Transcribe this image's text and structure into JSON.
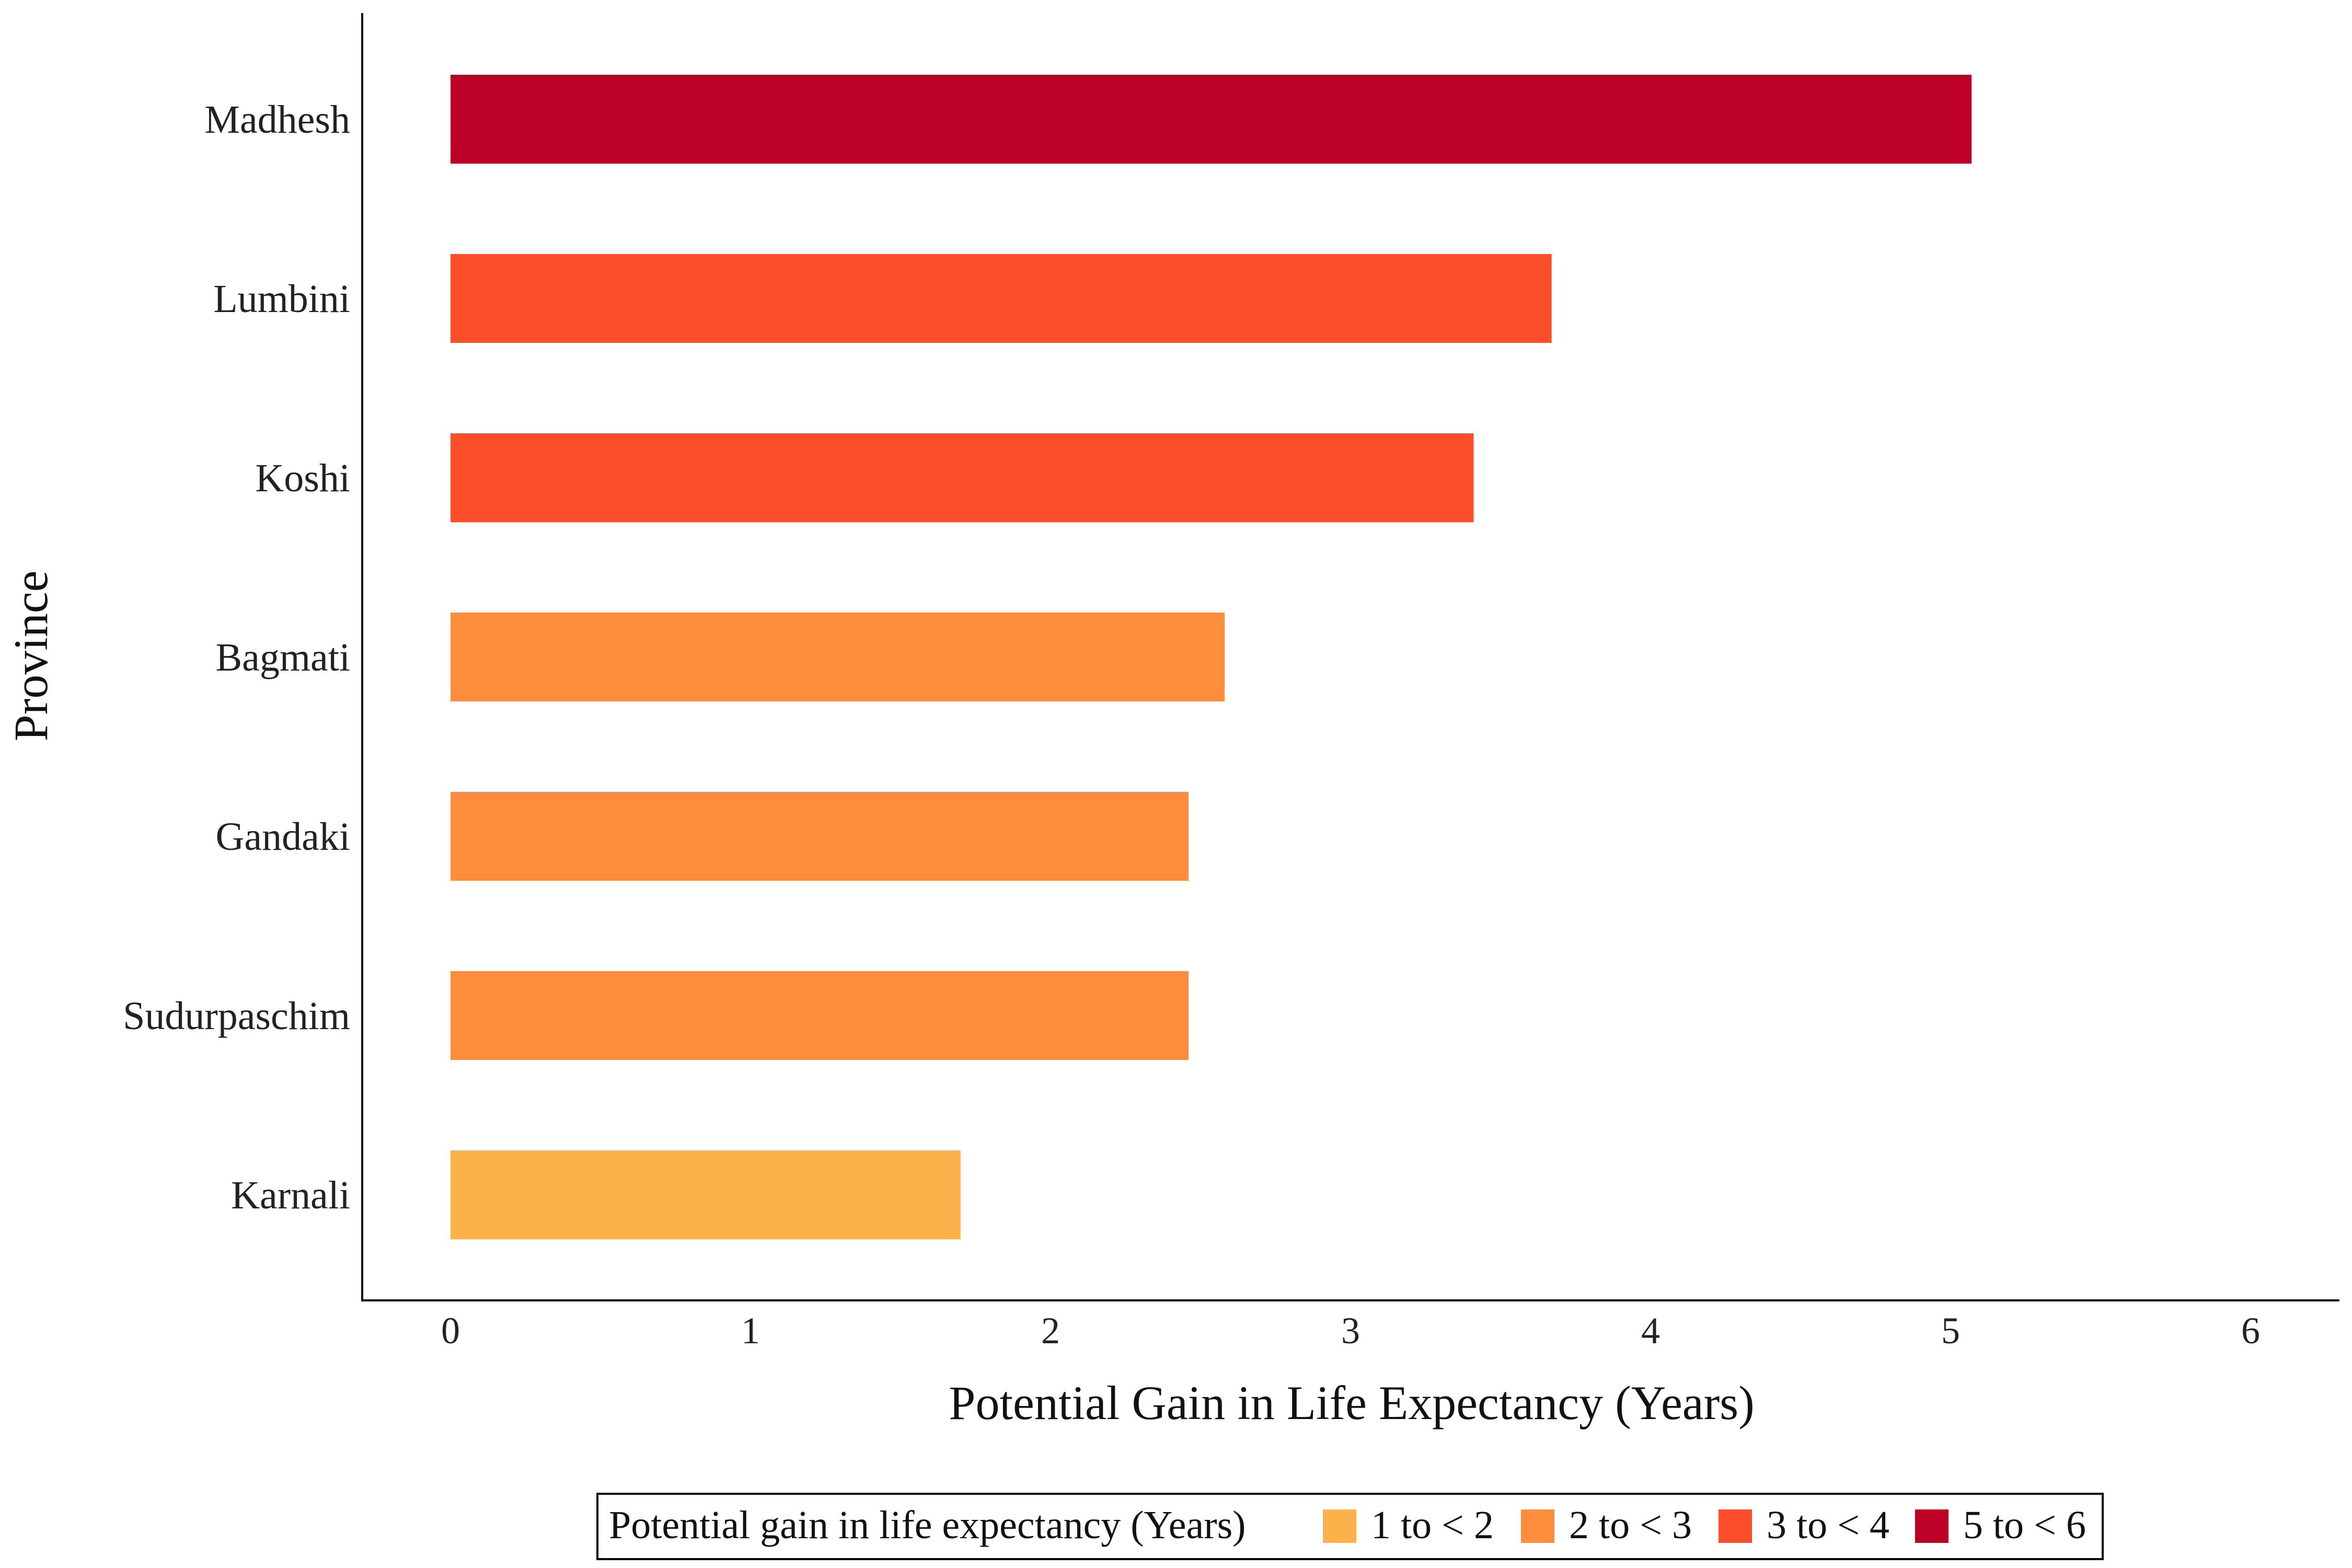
{
  "chart_data": {
    "type": "bar",
    "orientation": "horizontal",
    "xlabel": "Potential Gain in Life Expectancy (Years)",
    "ylabel": "Province",
    "xlim": [
      0,
      6
    ],
    "x_ticks": [
      "0",
      "1",
      "2",
      "3",
      "4",
      "5",
      "6"
    ],
    "grid": false,
    "categories": [
      "Madhesh",
      "Lumbini",
      "Koshi",
      "Bagmati",
      "Gandaki",
      "Sudurpaschim",
      "Karnali"
    ],
    "values": [
      5.07,
      3.67,
      3.41,
      2.58,
      2.46,
      2.46,
      1.7
    ],
    "bar_bins": [
      "5 to < 6",
      "3 to < 4",
      "3 to < 4",
      "2 to < 3",
      "2 to < 3",
      "2 to < 3",
      "1 to < 2"
    ],
    "legend": {
      "title": "Potential gain in life expectancy (Years)",
      "position": "bottom",
      "entries": [
        {
          "label": "1 to < 2",
          "color": "#FDB14B"
        },
        {
          "label": "2 to < 3",
          "color": "#FC8D3C"
        },
        {
          "label": "3 to < 4",
          "color": "#FC4E2A"
        },
        {
          "label": "5 to < 6",
          "color": "#BD0026"
        }
      ]
    }
  }
}
